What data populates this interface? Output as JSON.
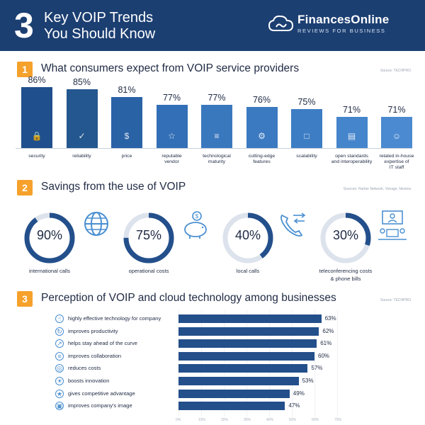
{
  "header": {
    "number": "3",
    "title_line1": "Key VOIP Trends",
    "title_line2": "You Should Know",
    "brand_name": "FinancesOnline",
    "brand_tagline": "REVIEWS FOR BUSINESS"
  },
  "section1": {
    "number": "1",
    "title": "What consumers expect from VOIP service providers",
    "source": "Source: TECHPRO",
    "items": [
      {
        "value": "86%",
        "label": "security",
        "icon": "lock-icon",
        "color": "#1f4f8c"
      },
      {
        "value": "85%",
        "label": "reliability",
        "icon": "shield-check-icon",
        "color": "#24578f"
      },
      {
        "value": "81%",
        "label": "price",
        "icon": "price-tag-icon",
        "color": "#2a62a6"
      },
      {
        "value": "77%",
        "label": "reputable\nvendor",
        "icon": "star-badge-icon",
        "color": "#336fb6"
      },
      {
        "value": "77%",
        "label": "technological\nmaturity",
        "icon": "server-icon",
        "color": "#3a78be"
      },
      {
        "value": "76%",
        "label": "cutting-edge\nfeatures",
        "icon": "gears-icon",
        "color": "#3b7ac1"
      },
      {
        "value": "75%",
        "label": "scalability",
        "icon": "expand-icon",
        "color": "#3d7dc4"
      },
      {
        "value": "71%",
        "label": "open standards\nand interoperability",
        "icon": "document-icon",
        "color": "#4585cb"
      },
      {
        "value": "71%",
        "label": "related in-house\nexpertise of\nIT staff",
        "icon": "expert-icon",
        "color": "#4b8ad0"
      }
    ]
  },
  "section2": {
    "number": "2",
    "title": "Savings from the use of VOIP",
    "source": "Sources: Harbor Network, Vonage, Nextiva",
    "items": [
      {
        "value": "90%",
        "label": "international calls",
        "fraction": 0.9,
        "icon": "globe-icon"
      },
      {
        "value": "75%",
        "label": "operational costs",
        "fraction": 0.75,
        "icon": "piggy-bank-icon"
      },
      {
        "value": "40%",
        "label": "local calls",
        "fraction": 0.4,
        "icon": "phone-arrows-icon"
      },
      {
        "value": "30%",
        "label": "teleconferencing costs\n& phone bills",
        "fraction": 0.3,
        "icon": "conference-icon"
      }
    ],
    "ring_color": "#234f8b",
    "track_color": "#dde3ec"
  },
  "section3": {
    "number": "3",
    "title": "Perception of VOIP and cloud technology among businesses",
    "source": "Source: TECHPRO",
    "axis_ticks": [
      "0%",
      "10%",
      "20%",
      "30%",
      "40%",
      "50%",
      "60%",
      "70%"
    ]
  },
  "chart_data": {
    "type": "bar",
    "orientation": "horizontal",
    "categories": [
      "highly effective technology for company",
      "improves productivity",
      "helps stay ahead of the curve",
      "improves collaboration",
      "reduces costs",
      "boosts innovation",
      "gives competitive advantage",
      "improves company's image"
    ],
    "values": [
      63,
      62,
      61,
      60,
      57,
      53,
      49,
      47
    ],
    "value_labels": [
      "63%",
      "62%",
      "61%",
      "60%",
      "57%",
      "53%",
      "49%",
      "47%"
    ],
    "icons": [
      "thumbs-up-icon",
      "productivity-icon",
      "trend-up-icon",
      "collaboration-icon",
      "coins-icon",
      "lightbulb-icon",
      "trophy-icon",
      "image-icon"
    ],
    "xlim": [
      0,
      70
    ],
    "bar_color": "#234f8b"
  }
}
